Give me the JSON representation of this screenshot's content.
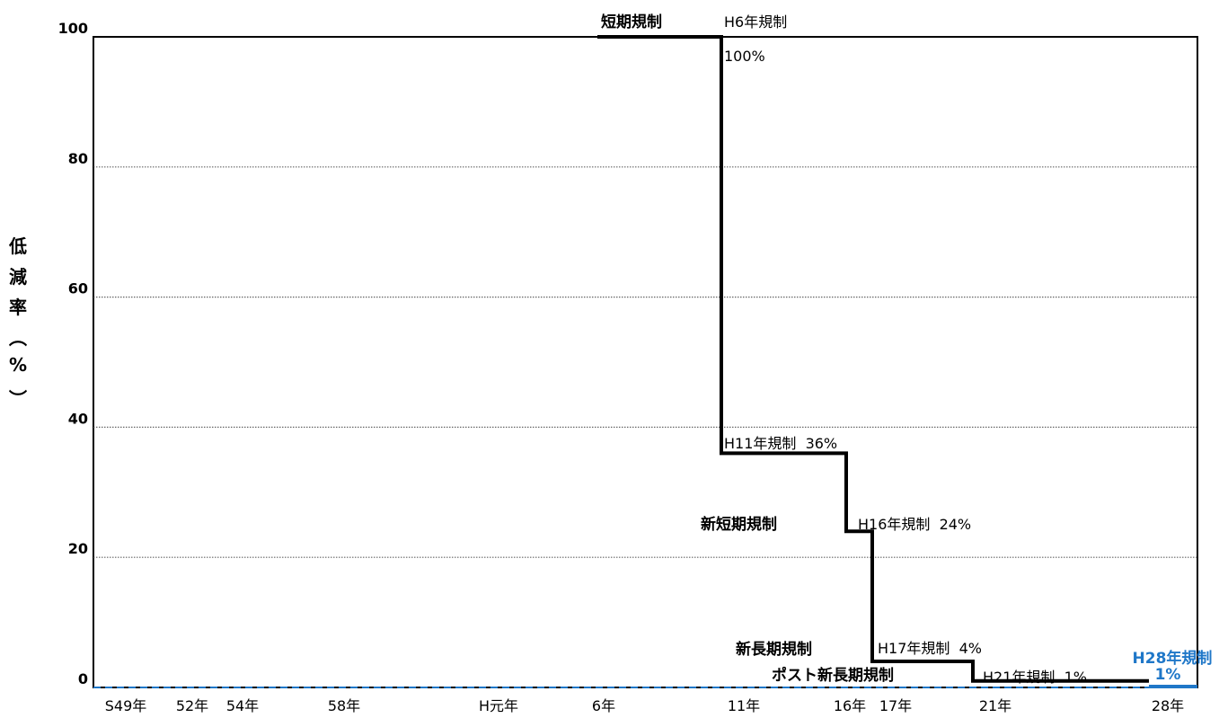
{
  "chart_data": {
    "type": "line",
    "title": "",
    "xlabel": "",
    "ylabel": "低減率（%）",
    "ylabel_chars": [
      "低",
      "減",
      "率",
      "︵",
      "%",
      "︶"
    ],
    "ylim": [
      0,
      100
    ],
    "yticks": [
      0,
      20,
      40,
      60,
      80,
      100
    ],
    "grid": true,
    "x_ticks": [
      {
        "label": "S49年",
        "year": 1974
      },
      {
        "label": "52年",
        "year": 1977
      },
      {
        "label": "54年",
        "year": 1979
      },
      {
        "label": "58年",
        "year": 1983
      },
      {
        "label": "H元年",
        "year": 1989
      },
      {
        "label": "6年",
        "year": 1994
      },
      {
        "label": "11年",
        "year": 1999
      },
      {
        "label": "16年",
        "year": 2004
      },
      {
        "label": "17年",
        "year": 2005
      },
      {
        "label": "21年",
        "year": 2009
      },
      {
        "label": "28年",
        "year": 2016
      }
    ],
    "xlim": [
      1971.5,
      2016.5
    ],
    "series": [
      {
        "color": "#000000",
        "style": "step",
        "points": [
          {
            "x": 1994,
            "y": 100
          },
          {
            "x": 1999,
            "y": 100
          },
          {
            "x": 1999,
            "y": 36
          },
          {
            "x": 2004,
            "y": 36
          },
          {
            "x": 2004,
            "y": 24
          },
          {
            "x": 2005,
            "y": 24
          },
          {
            "x": 2005,
            "y": 4
          },
          {
            "x": 2009,
            "y": 4
          },
          {
            "x": 2009,
            "y": 1
          },
          {
            "x": 2016,
            "y": 1
          }
        ]
      },
      {
        "color": "#000000",
        "style": "dashed",
        "points": [
          {
            "x": 1971.5,
            "y": 100
          },
          {
            "x": 1994,
            "y": 100
          }
        ]
      },
      {
        "color": "#1f77c8",
        "style": "dashed",
        "points": [
          {
            "x": 1971.5,
            "y": 0
          },
          {
            "x": 2016.5,
            "y": 0
          }
        ]
      }
    ],
    "annotations": [
      {
        "text": "短期規制",
        "bold": true,
        "color": "#000000"
      },
      {
        "text": "H6年規制",
        "bold": false,
        "color": "#000000"
      },
      {
        "text": "100%",
        "bold": false,
        "color": "#000000"
      },
      {
        "text": "H11年規制  36%",
        "bold": false,
        "color": "#000000"
      },
      {
        "text": "新短期規制",
        "bold": true,
        "color": "#000000"
      },
      {
        "text": "H16年規制  24%",
        "bold": false,
        "color": "#000000"
      },
      {
        "text": "新長期規制",
        "bold": true,
        "color": "#000000"
      },
      {
        "text": "H17年規制  4%",
        "bold": false,
        "color": "#000000"
      },
      {
        "text": "ポスト新長期規制",
        "bold": true,
        "color": "#000000"
      },
      {
        "text": "H21年規制  1%",
        "bold": false,
        "color": "#000000"
      },
      {
        "text": "H28年規制",
        "bold": true,
        "color": "#1f77c8"
      },
      {
        "text": "1%",
        "bold": true,
        "color": "#1f77c8"
      }
    ]
  }
}
